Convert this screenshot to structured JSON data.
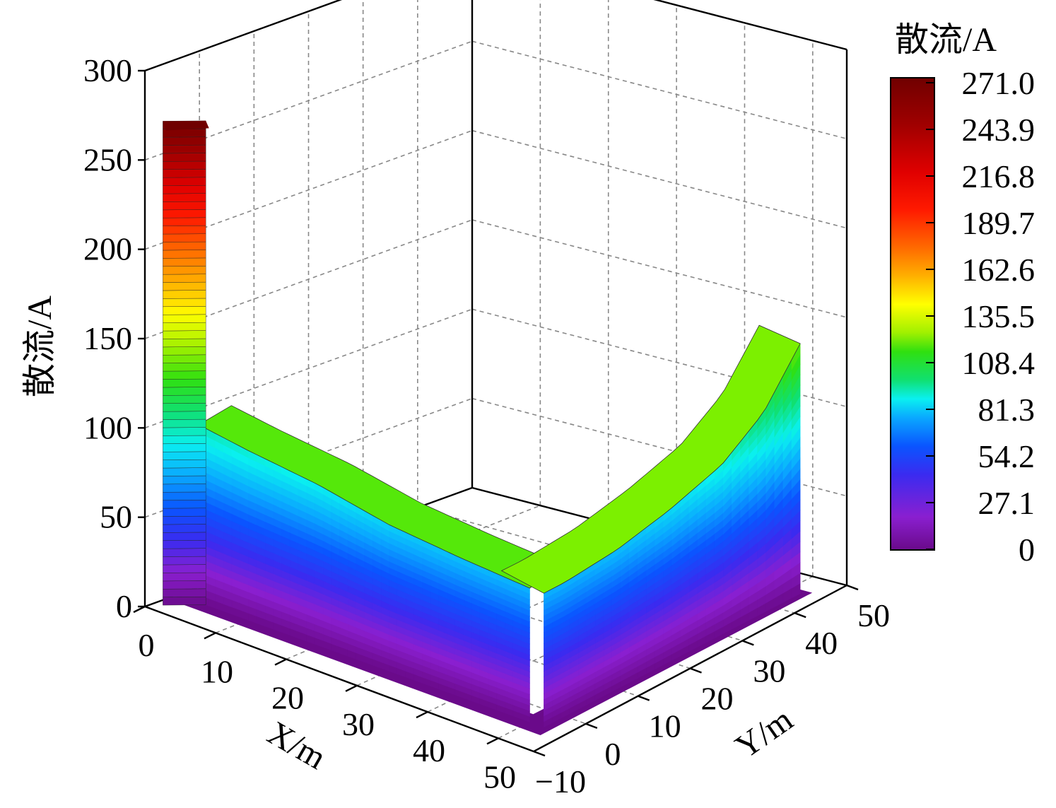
{
  "chart_data": {
    "type": "surface3d",
    "zlabel": "散流/A",
    "xlabel": "X/m",
    "ylabel": "Y/m",
    "colorbar_title": "散流/A",
    "zlim": [
      0,
      300
    ],
    "xlim": [
      0,
      55
    ],
    "ylim": [
      -10,
      50
    ],
    "z_ticks": [
      "0",
      "50",
      "100",
      "150",
      "200",
      "250",
      "300"
    ],
    "x_ticks": [
      "0",
      "10",
      "20",
      "30",
      "40",
      "50"
    ],
    "y_ticks": [
      "−10",
      "0",
      "10",
      "20",
      "30",
      "40",
      "50"
    ],
    "colorbar_ticks": [
      "271.0",
      "243.9",
      "216.8",
      "189.7",
      "162.6",
      "135.5",
      "108.4",
      "81.3",
      "54.2",
      "27.1",
      "0"
    ],
    "colorbar_range": [
      0,
      271.0
    ],
    "grid": true,
    "legend": "colorbar right",
    "surface_profile": {
      "description_points_x_along_front_edge": [
        {
          "x": 0,
          "y": 0,
          "value": 271.0
        },
        {
          "x": 2,
          "y": 0,
          "value": 100
        },
        {
          "x": 10,
          "y": 0,
          "value": 95
        },
        {
          "x": 20,
          "y": 0,
          "value": 90
        },
        {
          "x": 30,
          "y": 0,
          "value": 82
        },
        {
          "x": 40,
          "y": 0,
          "value": 78
        },
        {
          "x": 50,
          "y": 0,
          "value": 75
        }
      ],
      "description_points_y_along_right_edge": [
        {
          "x": 50,
          "y": 0,
          "value": 75
        },
        {
          "x": 50,
          "y": 10,
          "value": 78
        },
        {
          "x": 50,
          "y": 20,
          "value": 85
        },
        {
          "x": 50,
          "y": 30,
          "value": 95
        },
        {
          "x": 50,
          "y": 38,
          "value": 112
        },
        {
          "x": 50,
          "y": 45,
          "value": 140
        }
      ]
    },
    "colors": {
      "colormap": [
        "#6a0a8a",
        "#8a1fd0",
        "#3a2bf0",
        "#0a55ff",
        "#0aa8ff",
        "#0af0f0",
        "#10e070",
        "#30e010",
        "#a0f000",
        "#ffff00",
        "#ffb000",
        "#ff6a00",
        "#ff1a00",
        "#e00000",
        "#a00000",
        "#700000"
      ]
    }
  }
}
